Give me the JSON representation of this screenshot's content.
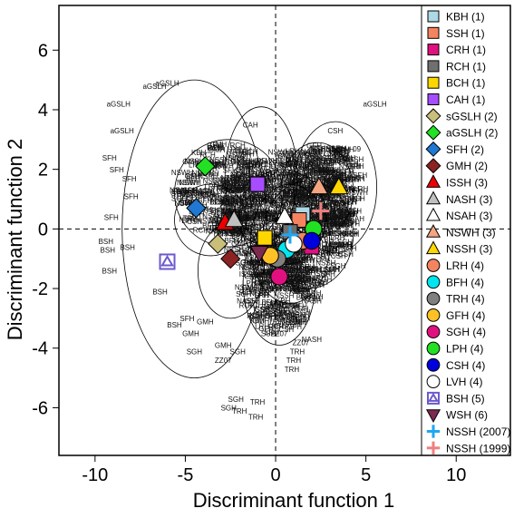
{
  "chart_data": {
    "type": "scatter",
    "title": "",
    "xlabel": "Discriminant function 1",
    "ylabel": "Discriminant function 2",
    "xlim": [
      -12,
      13
    ],
    "ylim": [
      -7.6,
      7.5
    ],
    "x_ticks": [
      -10,
      -5,
      0,
      5,
      10
    ],
    "y_ticks": [
      -6,
      -4,
      -2,
      0,
      2,
      4,
      6
    ],
    "x_tick_labels": [
      "-10",
      "-5",
      "0",
      "5",
      "10"
    ],
    "y_tick_labels": [
      "-6",
      "-4",
      "-2",
      "0",
      "2",
      "4",
      "6"
    ],
    "reference_lines": {
      "x": 0,
      "y": 0,
      "style": "dashed"
    },
    "legend_position": "right",
    "series": [
      {
        "name": "KBH (1)",
        "marker": "square",
        "color": "#add8e6",
        "centroid": [
          1.5,
          0.5
        ]
      },
      {
        "name": "SSH (1)",
        "marker": "square",
        "color": "#f4845f",
        "centroid": [
          1.3,
          0.3
        ]
      },
      {
        "name": "CRH (1)",
        "marker": "square",
        "color": "#e0117f",
        "centroid": [
          2.0,
          -0.6
        ]
      },
      {
        "name": "RCH (1)",
        "marker": "square",
        "color": "#707070",
        "centroid": [
          0.8,
          -0.1
        ]
      },
      {
        "name": "BCH (1)",
        "marker": "square",
        "color": "#ffd700",
        "centroid": [
          -0.6,
          -0.3
        ]
      },
      {
        "name": "CAH (1)",
        "marker": "square",
        "color": "#a64dff",
        "centroid": [
          -1.0,
          1.5
        ]
      },
      {
        "name": "sGSLH (2)",
        "marker": "diamond",
        "color": "#c9be7a",
        "centroid": [
          -3.2,
          -0.5
        ]
      },
      {
        "name": "aGSLH (2)",
        "marker": "diamond",
        "color": "#22e022",
        "centroid": [
          -3.9,
          2.1
        ]
      },
      {
        "name": "SFH (2)",
        "marker": "diamond",
        "color": "#1f78d1",
        "centroid": [
          -4.4,
          0.7
        ]
      },
      {
        "name": "GMH (2)",
        "marker": "diamond",
        "color": "#8b2323",
        "centroid": [
          -2.5,
          -1.0
        ]
      },
      {
        "name": "ISSH (3)",
        "marker": "triangle",
        "color": "#ee0000",
        "centroid": [
          -2.8,
          0.2
        ]
      },
      {
        "name": "NASH (3)",
        "marker": "triangle",
        "color": "#c0c0c0",
        "centroid": [
          -2.3,
          0.3
        ]
      },
      {
        "name": "NSAH (3)",
        "marker": "triangle",
        "color": "#ffffff",
        "centroid": [
          0.5,
          0.4
        ]
      },
      {
        "name": "NSWH (3)",
        "marker": "triangle",
        "color": "#f4a582",
        "centroid": [
          2.4,
          1.4
        ]
      },
      {
        "name": "NSSH (3)",
        "marker": "triangle",
        "color": "#ffd700",
        "centroid": [
          3.5,
          1.4
        ]
      },
      {
        "name": "LRH (4)",
        "marker": "circle",
        "color": "#f4845f",
        "centroid": [
          1.5,
          -0.4
        ]
      },
      {
        "name": "BFH (4)",
        "marker": "circle",
        "color": "#00e5ee",
        "centroid": [
          0.6,
          -0.7
        ]
      },
      {
        "name": "TRH (4)",
        "marker": "circle",
        "color": "#808080",
        "centroid": [
          0.1,
          -1.0
        ]
      },
      {
        "name": "GFH (4)",
        "marker": "circle",
        "color": "#ffc125",
        "centroid": [
          -0.3,
          -0.9
        ]
      },
      {
        "name": "SGH (4)",
        "marker": "circle",
        "color": "#e0117f",
        "centroid": [
          0.2,
          -1.6
        ]
      },
      {
        "name": "LPH (4)",
        "marker": "circle",
        "color": "#22e022",
        "centroid": [
          2.1,
          0.0
        ]
      },
      {
        "name": "CSH (4)",
        "marker": "circle",
        "color": "#0000dd",
        "centroid": [
          2.0,
          -0.4
        ]
      },
      {
        "name": "LVH (4)",
        "marker": "circle",
        "color": "#ffffff",
        "centroid": [
          1.0,
          -0.5
        ]
      },
      {
        "name": "BSH (5)",
        "marker": "square-triangle",
        "color": "#6a5acd",
        "centroid": [
          -6.0,
          -1.1
        ]
      },
      {
        "name": "WSH (6)",
        "marker": "inverted-triangle",
        "color": "#7b2a50",
        "centroid": [
          -0.9,
          -0.8
        ]
      },
      {
        "name": "NSSH (2007)",
        "marker": "cross",
        "color": "#1ea7f2",
        "centroid": [
          0.8,
          -0.2
        ]
      },
      {
        "name": "NSSH (1999)",
        "marker": "cross",
        "color": "#f08080",
        "centroid": [
          2.5,
          0.6
        ]
      }
    ],
    "ellipses": [
      {
        "cx": -4.5,
        "cy": 0.0,
        "rx": 4.0,
        "ry": 5.0
      },
      {
        "cx": -2.6,
        "cy": 1.2,
        "rx": 3.0,
        "ry": 1.8
      },
      {
        "cx": -0.8,
        "cy": 1.8,
        "rx": 2.0,
        "ry": 2.3
      },
      {
        "cx": 0.4,
        "cy": 0.4,
        "rx": 2.4,
        "ry": 1.6
      },
      {
        "cx": 0.8,
        "cy": -0.5,
        "rx": 2.2,
        "ry": 2.0
      },
      {
        "cx": 2.3,
        "cy": 1.3,
        "rx": 2.0,
        "ry": 1.6
      },
      {
        "cx": 3.3,
        "cy": 1.4,
        "rx": 2.3,
        "ry": 2.2
      },
      {
        "cx": -2.5,
        "cy": -1.4,
        "rx": 1.8,
        "ry": 1.6
      },
      {
        "cx": 0.2,
        "cy": -1.8,
        "rx": 2.0,
        "ry": 2.1
      },
      {
        "cx": -3.6,
        "cy": 0.3,
        "rx": 2.0,
        "ry": 1.2
      },
      {
        "cx": 1.8,
        "cy": -0.2,
        "rx": 2.5,
        "ry": 1.8
      }
    ],
    "annotations": [
      {
        "text": "aGSLH",
        "x": -6.7,
        "y": 4.7
      },
      {
        "text": "aGSLH",
        "x": -6.0,
        "y": 4.8
      },
      {
        "text": "aGSLH",
        "x": -8.7,
        "y": 4.1
      },
      {
        "text": "aGSLH",
        "x": 5.5,
        "y": 4.1
      },
      {
        "text": "aGSLH",
        "x": -8.5,
        "y": 3.2
      },
      {
        "text": "SFH",
        "x": -9.2,
        "y": 2.3
      },
      {
        "text": "SFH",
        "x": -8.8,
        "y": 1.9
      },
      {
        "text": "SFH",
        "x": -8.1,
        "y": 1.6
      },
      {
        "text": "SFH",
        "x": -8.0,
        "y": 1.0
      },
      {
        "text": "SFH",
        "x": -9.1,
        "y": 0.3
      },
      {
        "text": "BSH",
        "x": -9.4,
        "y": -0.5
      },
      {
        "text": "BSH",
        "x": -9.3,
        "y": -0.8
      },
      {
        "text": "BSH",
        "x": -8.2,
        "y": -0.7
      },
      {
        "text": "BSH",
        "x": -9.2,
        "y": -1.5
      },
      {
        "text": "BSH",
        "x": -6.4,
        "y": -2.2
      },
      {
        "text": "BSH",
        "x": -5.6,
        "y": -3.3
      },
      {
        "text": "SFH",
        "x": -4.9,
        "y": -3.1
      },
      {
        "text": "GMH",
        "x": -4.7,
        "y": -3.6
      },
      {
        "text": "GMH",
        "x": -3.9,
        "y": -3.2
      },
      {
        "text": "SGH",
        "x": -4.5,
        "y": -4.2
      },
      {
        "text": "GMH",
        "x": -2.9,
        "y": -4.0
      },
      {
        "text": "SGH",
        "x": -2.1,
        "y": -4.2
      },
      {
        "text": "ZZ07",
        "x": -2.9,
        "y": -4.5
      },
      {
        "text": "SSH",
        "x": -0.4,
        "y": -3.6
      },
      {
        "text": "ZZ07",
        "x": 0.2,
        "y": -3.6
      },
      {
        "text": "TRH",
        "x": 0.0,
        "y": -3.2
      },
      {
        "text": "NASH",
        "x": 2.0,
        "y": -3.8
      },
      {
        "text": "ZZ07",
        "x": 1.4,
        "y": -3.9
      },
      {
        "text": "TRH",
        "x": 1.2,
        "y": -4.2
      },
      {
        "text": "TRH",
        "x": 1.0,
        "y": -4.5
      },
      {
        "text": "TRH",
        "x": 0.9,
        "y": -4.8
      },
      {
        "text": "SGH",
        "x": -2.2,
        "y": -5.8
      },
      {
        "text": "TRH",
        "x": -1.0,
        "y": -5.9
      },
      {
        "text": "SGH",
        "x": -2.6,
        "y": -6.1
      },
      {
        "text": "TRH",
        "x": -2.0,
        "y": -6.2
      },
      {
        "text": "TRH",
        "x": -1.1,
        "y": -6.4
      },
      {
        "text": "CAH",
        "x": -1.4,
        "y": 3.4
      },
      {
        "text": "CSH",
        "x": 3.3,
        "y": 3.2
      },
      {
        "text": "NSH",
        "x": 1.3,
        "y": 2.4
      },
      {
        "text": "NSSH",
        "x": 2.5,
        "y": 2.6
      },
      {
        "text": "09",
        "x": 4.5,
        "y": 2.6
      },
      {
        "text": "NSSH",
        "x": 3.6,
        "y": 2.2
      }
    ]
  }
}
